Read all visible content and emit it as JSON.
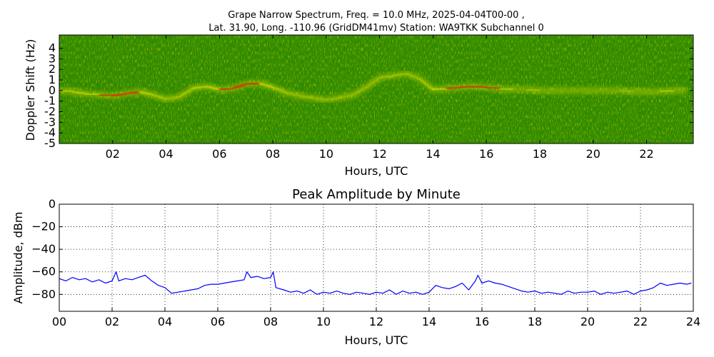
{
  "figure": {
    "title_line1": "Grape Narrow Spectrum, Freq. = 10.0 MHz, 2025-04-04T00-00 ,",
    "title_line2": "Lat.  31.90, Long. -110.96 (GridDM41mv) Station: WA9TKK Subchannel 0"
  },
  "chart_data": [
    {
      "type": "heatmap",
      "title": "",
      "xlabel": "Hours, UTC",
      "ylabel": "Doppler Shift (Hz)",
      "xlim": [
        0,
        23.75
      ],
      "ylim": [
        -5,
        5
      ],
      "x_ticks": [
        "02",
        "04",
        "06",
        "08",
        "10",
        "12",
        "14",
        "16",
        "18",
        "20",
        "22"
      ],
      "y_ticks": [
        "4",
        "3",
        "2",
        "1",
        "0",
        "-1",
        "-2",
        "-3",
        "-4",
        "-5"
      ],
      "colors": {
        "background": "#2f8a00",
        "signal_mid": "#d8e000",
        "signal_peak": "#e82000"
      },
      "doppler_trace": {
        "x_hours": [
          0,
          0.5,
          1.0,
          1.5,
          2.0,
          2.5,
          3.0,
          3.5,
          4.0,
          4.5,
          5.0,
          5.5,
          6.0,
          6.5,
          7.0,
          7.5,
          8.0,
          8.5,
          9.0,
          9.5,
          10.0,
          10.5,
          11.0,
          11.5,
          12.0,
          12.5,
          13.0,
          13.5,
          14.0,
          14.5,
          15.0,
          15.5,
          16.0,
          16.5,
          17.0,
          17.5,
          18.0,
          18.5,
          19.0,
          19.5,
          20.0,
          20.5,
          21.0,
          21.5,
          22.0,
          22.5,
          23.0,
          23.5
        ],
        "shift_hz": [
          0,
          -0.1,
          -0.3,
          -0.4,
          -0.5,
          -0.3,
          -0.1,
          -0.4,
          -0.8,
          -0.6,
          0.2,
          0.4,
          0.1,
          0.2,
          0.6,
          0.7,
          0.3,
          -0.2,
          -0.5,
          -0.7,
          -0.9,
          -0.7,
          -0.4,
          0.3,
          1.2,
          1.4,
          1.6,
          1.1,
          0.1,
          0.2,
          0.3,
          0.4,
          0.3,
          0.2,
          0.1,
          0.1,
          0,
          0,
          0,
          0,
          0,
          0,
          0,
          -0.1,
          -0.1,
          -0.1,
          0,
          0
        ],
        "intensity": [
          0.8,
          0.8,
          0.7,
          0.9,
          0.9,
          0.95,
          0.9,
          0.6,
          0.4,
          0.4,
          0.7,
          0.8,
          0.85,
          0.95,
          1.0,
          0.95,
          0.7,
          0.4,
          0.3,
          0.3,
          0.3,
          0.3,
          0.3,
          0.35,
          0.4,
          0.45,
          0.4,
          0.35,
          0.8,
          0.85,
          0.9,
          0.95,
          0.9,
          0.8,
          0.6,
          0.5,
          0.45,
          0.45,
          0.45,
          0.45,
          0.45,
          0.4,
          0.4,
          0.5,
          0.6,
          0.7,
          0.8,
          0.75
        ]
      }
    },
    {
      "type": "line",
      "title": "Peak Amplitude by Minute",
      "xlabel": "Hours, UTC",
      "ylabel": "Amplitude, dBm",
      "xlim": [
        0,
        24
      ],
      "ylim": [
        -95,
        0
      ],
      "x_ticks": [
        "00",
        "02",
        "04",
        "06",
        "08",
        "10",
        "12",
        "14",
        "16",
        "18",
        "20",
        "22",
        "24"
      ],
      "y_ticks": [
        0,
        -20,
        -40,
        -60,
        -80
      ],
      "grid": true,
      "line_color": "#0000ff",
      "series": [
        {
          "x": [
            0,
            0.25,
            0.5,
            0.75,
            1.0,
            1.25,
            1.5,
            1.75,
            2.0,
            2.15,
            2.25,
            2.5,
            2.75,
            3.0,
            3.25,
            3.5,
            3.75,
            4.0,
            4.25,
            4.5,
            4.75,
            5.0,
            5.25,
            5.5,
            5.75,
            6.0,
            6.25,
            6.5,
            6.75,
            7.0,
            7.1,
            7.25,
            7.5,
            7.75,
            8.0,
            8.1,
            8.2,
            8.5,
            8.75,
            9.0,
            9.25,
            9.5,
            9.75,
            10.0,
            10.25,
            10.5,
            10.75,
            11.0,
            11.25,
            11.5,
            11.75,
            12.0,
            12.25,
            12.5,
            12.75,
            13.0,
            13.25,
            13.5,
            13.75,
            14.0,
            14.25,
            14.5,
            14.75,
            15.0,
            15.25,
            15.5,
            15.75,
            15.85,
            16.0,
            16.25,
            16.5,
            16.75,
            17.0,
            17.25,
            17.5,
            17.75,
            18.0,
            18.25,
            18.5,
            18.75,
            19.0,
            19.25,
            19.5,
            19.75,
            20.0,
            20.25,
            20.5,
            20.75,
            21.0,
            21.25,
            21.5,
            21.75,
            22.0,
            22.25,
            22.5,
            22.75,
            23.0,
            23.25,
            23.5,
            23.75,
            23.93
          ],
          "y": [
            -66,
            -68,
            -65,
            -67,
            -66,
            -69,
            -67,
            -70,
            -68,
            -60,
            -68,
            -66,
            -67,
            -65,
            -63,
            -68,
            -72,
            -74,
            -79,
            -78,
            -77,
            -76,
            -75,
            -72,
            -71,
            -71,
            -70,
            -69,
            -68,
            -67,
            -60,
            -65,
            -64,
            -66,
            -65,
            -60,
            -74,
            -76,
            -78,
            -77,
            -79,
            -76,
            -80,
            -78,
            -79,
            -77,
            -79,
            -80,
            -78,
            -79,
            -80,
            -78,
            -79,
            -76,
            -80,
            -77,
            -79,
            -78,
            -80,
            -78,
            -72,
            -74,
            -75,
            -73,
            -70,
            -76,
            -68,
            -63,
            -70,
            -68,
            -70,
            -71,
            -73,
            -75,
            -77,
            -78,
            -77,
            -79,
            -78,
            -79,
            -80,
            -77,
            -79,
            -78,
            -78,
            -77,
            -80,
            -78,
            -79,
            -78,
            -77,
            -80,
            -77,
            -76,
            -74,
            -70,
            -72,
            -71,
            -70,
            -71,
            -70
          ]
        }
      ]
    }
  ]
}
